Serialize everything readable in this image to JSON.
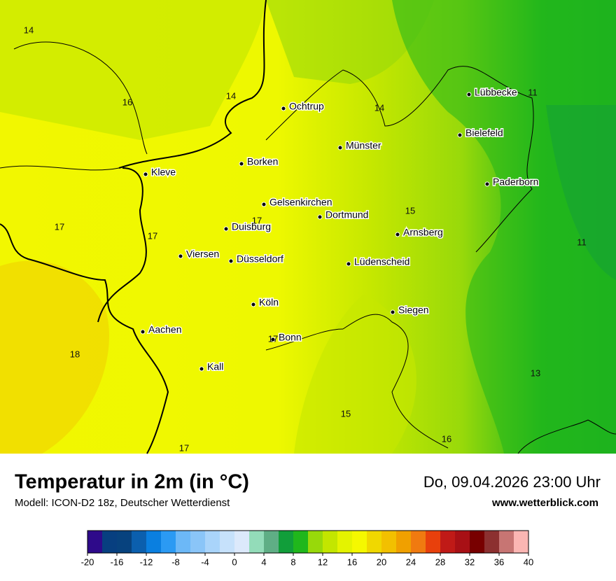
{
  "map": {
    "cities": [
      "Lübbecke",
      "Ochtrup",
      "Bielefeld",
      "Münster",
      "Borken",
      "Kleve",
      "Paderborn",
      "Gelsenkirchen",
      "Dortmund",
      "Duisburg",
      "Arnsberg",
      "Viersen",
      "Düsseldorf",
      "Lüdenscheid",
      "Köln",
      "Siegen",
      "Aachen",
      "Bonn",
      "Kall"
    ],
    "contour_labels": [
      14,
      16,
      14,
      14,
      11,
      17,
      17,
      17,
      15,
      11,
      18,
      17,
      13,
      15,
      16,
      17
    ]
  },
  "footer": {
    "title": "Temperatur in 2m (in °C)",
    "model": "Modell: ICON-D2 18z, Deutscher Wetterdienst",
    "datetime": "Do, 09.04.2026 23:00 Uhr",
    "website": "www.wetterblick.com"
  },
  "legend": {
    "ticks": [
      -20,
      -16,
      -12,
      -8,
      -4,
      0,
      4,
      8,
      12,
      16,
      20,
      24,
      28,
      32,
      36,
      40
    ],
    "colors": [
      "#2e0a8a",
      "#073f80",
      "#07427e",
      "#0b5fae",
      "#0a7fe0",
      "#2b9af3",
      "#6cb8f7",
      "#8ac5f8",
      "#a9d4fa",
      "#c6e1fb",
      "#dce9fb",
      "#93dcb9",
      "#5fae85",
      "#119e3a",
      "#20b71c",
      "#98d90a",
      "#c3e600",
      "#e4f300",
      "#f5f800",
      "#f0d800",
      "#f2c000",
      "#f0a000",
      "#f07a10",
      "#e8400c",
      "#c01a17",
      "#a81015",
      "#780000",
      "#8c3030",
      "#c77573",
      "#fbb6b3"
    ]
  }
}
